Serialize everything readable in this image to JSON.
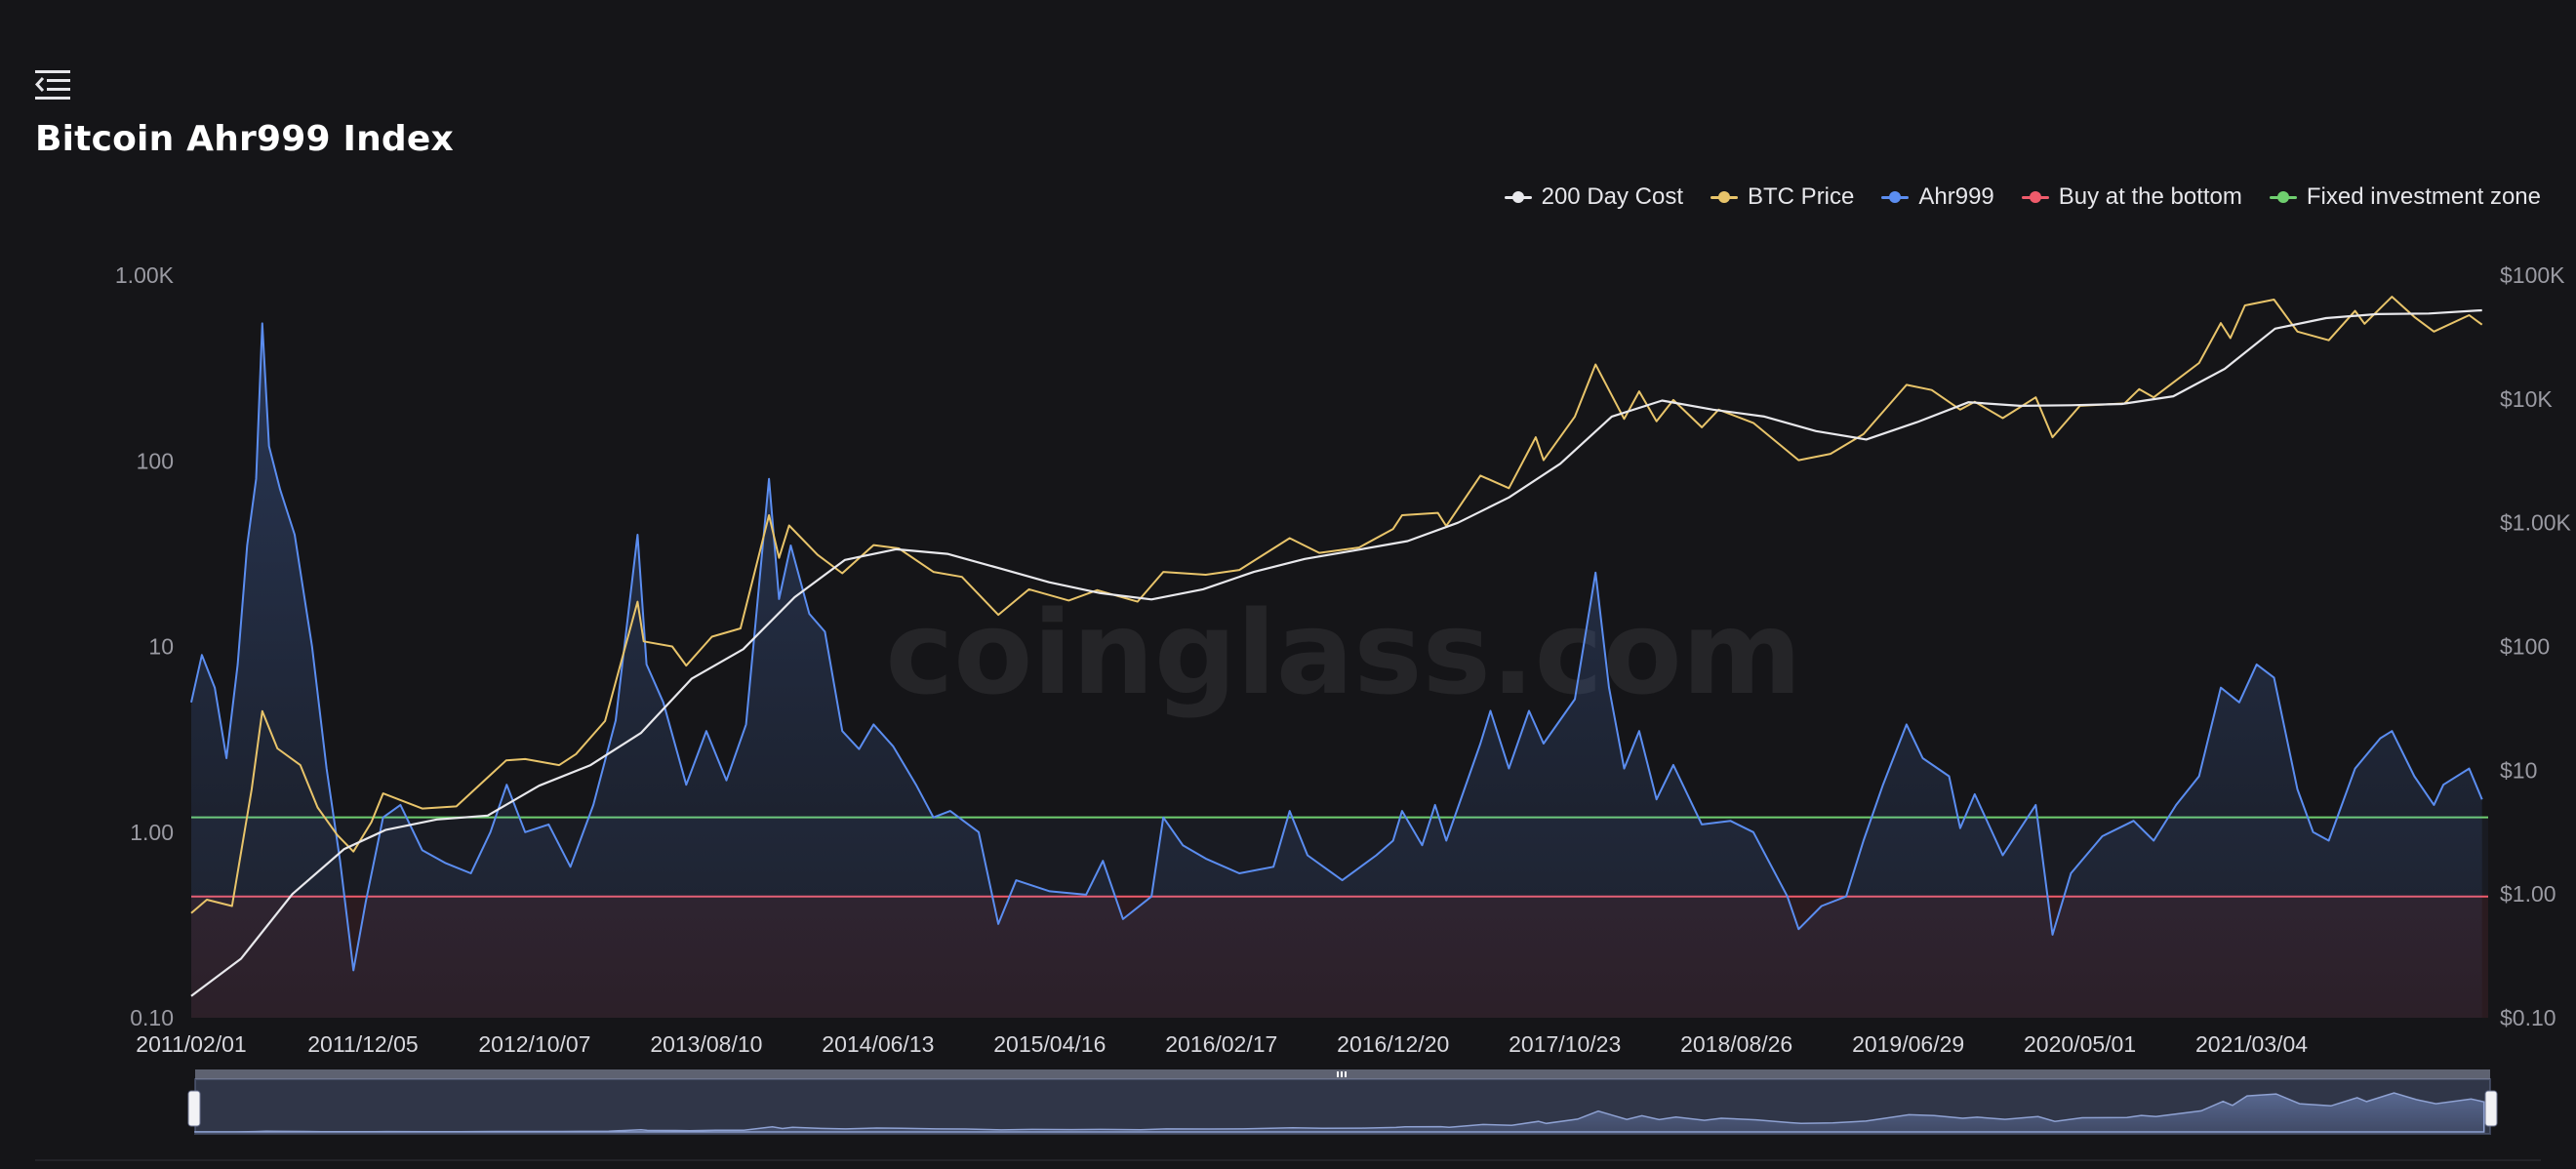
{
  "page": {
    "title": "Bitcoin Ahr999 Index",
    "watermark": "coinglass.com",
    "menu_icon": "collapse-menu-icon"
  },
  "legend": [
    {
      "key": "cost200",
      "label": "200 Day Cost",
      "color": "#e8e8ec"
    },
    {
      "key": "price",
      "label": "BTC Price",
      "color": "#e8c46a"
    },
    {
      "key": "ahr",
      "label": "Ahr999",
      "color": "#5b8df0"
    },
    {
      "key": "bottom",
      "label": "Buy at the bottom",
      "color": "#ef5b6b"
    },
    {
      "key": "fixed",
      "label": "Fixed investment zone",
      "color": "#6fcf6f"
    }
  ],
  "chart_data": {
    "type": "line",
    "title": "Bitcoin Ahr999 Index",
    "x_range": [
      "2011-02-01",
      "2022-05-01"
    ],
    "x_tick_labels": [
      "2011/02/01",
      "2011/12/05",
      "2012/10/07",
      "2013/08/10",
      "2014/06/13",
      "2015/04/16",
      "2016/02/17",
      "2016/12/20",
      "2017/10/23",
      "2018/08/26",
      "2019/06/29",
      "2020/05/01",
      "2021/03/04"
    ],
    "y_left": {
      "scale": "log",
      "range": [
        0.1,
        1000
      ],
      "tick_labels": [
        "0.10",
        "1.00",
        "10",
        "100",
        "1.00K"
      ],
      "tick_values": [
        0.1,
        1,
        10,
        100,
        1000
      ]
    },
    "y_right": {
      "scale": "log",
      "range": [
        0.1,
        100000
      ],
      "tick_labels": [
        "$0.10",
        "$1.00",
        "$10",
        "$100",
        "$1.00K",
        "$10K",
        "$100K"
      ],
      "tick_values": [
        0.1,
        1,
        10,
        100,
        1000,
        10000,
        100000
      ]
    },
    "thresholds": [
      {
        "name": "Buy at the bottom",
        "value": 0.45,
        "color": "#ef5b6b"
      },
      {
        "name": "Fixed investment zone",
        "value": 1.2,
        "color": "#6fcf6f"
      }
    ],
    "series": [
      {
        "name": "Ahr999",
        "axis": "left",
        "color": "#5b8df0",
        "points": [
          [
            "2011-02-01",
            5
          ],
          [
            "2011-02-20",
            9
          ],
          [
            "2011-03-15",
            6
          ],
          [
            "2011-04-05",
            2.5
          ],
          [
            "2011-04-25",
            8
          ],
          [
            "2011-05-12",
            35
          ],
          [
            "2011-05-28",
            80
          ],
          [
            "2011-06-08",
            550
          ],
          [
            "2011-06-20",
            120
          ],
          [
            "2011-07-10",
            70
          ],
          [
            "2011-08-05",
            40
          ],
          [
            "2011-09-05",
            10
          ],
          [
            "2011-10-01",
            2.2
          ],
          [
            "2011-10-25",
            0.7
          ],
          [
            "2011-11-18",
            0.18
          ],
          [
            "2011-12-10",
            0.42
          ],
          [
            "2012-01-10",
            1.2
          ],
          [
            "2012-02-10",
            1.4
          ],
          [
            "2012-03-20",
            0.8
          ],
          [
            "2012-05-01",
            0.68
          ],
          [
            "2012-06-15",
            0.6
          ],
          [
            "2012-07-20",
            1.0
          ],
          [
            "2012-08-18",
            1.8
          ],
          [
            "2012-09-20",
            1.0
          ],
          [
            "2012-11-01",
            1.1
          ],
          [
            "2012-12-10",
            0.65
          ],
          [
            "2013-01-20",
            1.4
          ],
          [
            "2013-03-01",
            4
          ],
          [
            "2013-04-09",
            40
          ],
          [
            "2013-04-25",
            8
          ],
          [
            "2013-05-25",
            5
          ],
          [
            "2013-07-05",
            1.8
          ],
          [
            "2013-08-10",
            3.5
          ],
          [
            "2013-09-15",
            1.9
          ],
          [
            "2013-10-20",
            3.8
          ],
          [
            "2013-11-30",
            80
          ],
          [
            "2013-12-18",
            18
          ],
          [
            "2014-01-08",
            35
          ],
          [
            "2014-02-10",
            15
          ],
          [
            "2014-03-10",
            12
          ],
          [
            "2014-04-10",
            3.5
          ],
          [
            "2014-05-10",
            2.8
          ],
          [
            "2014-06-05",
            3.8
          ],
          [
            "2014-07-10",
            2.9
          ],
          [
            "2014-08-20",
            1.8
          ],
          [
            "2014-09-20",
            1.2
          ],
          [
            "2014-10-20",
            1.3
          ],
          [
            "2014-12-10",
            1.0
          ],
          [
            "2015-01-14",
            0.32
          ],
          [
            "2015-02-15",
            0.55
          ],
          [
            "2015-04-16",
            0.48
          ],
          [
            "2015-06-20",
            0.46
          ],
          [
            "2015-07-20",
            0.7
          ],
          [
            "2015-08-25",
            0.34
          ],
          [
            "2015-10-15",
            0.45
          ],
          [
            "2015-11-05",
            1.2
          ],
          [
            "2015-12-10",
            0.85
          ],
          [
            "2016-01-20",
            0.72
          ],
          [
            "2016-03-20",
            0.6
          ],
          [
            "2016-05-20",
            0.65
          ],
          [
            "2016-06-18",
            1.3
          ],
          [
            "2016-07-20",
            0.75
          ],
          [
            "2016-09-20",
            0.55
          ],
          [
            "2016-11-20",
            0.75
          ],
          [
            "2016-12-20",
            0.9
          ],
          [
            "2017-01-05",
            1.3
          ],
          [
            "2017-02-10",
            0.85
          ],
          [
            "2017-03-05",
            1.4
          ],
          [
            "2017-03-25",
            0.9
          ],
          [
            "2017-05-25",
            3.0
          ],
          [
            "2017-06-12",
            4.5
          ],
          [
            "2017-07-15",
            2.2
          ],
          [
            "2017-08-20",
            4.5
          ],
          [
            "2017-09-15",
            3.0
          ],
          [
            "2017-11-10",
            5.2
          ],
          [
            "2017-12-17",
            25
          ],
          [
            "2018-01-10",
            6
          ],
          [
            "2018-02-06",
            2.2
          ],
          [
            "2018-03-05",
            3.5
          ],
          [
            "2018-04-05",
            1.5
          ],
          [
            "2018-05-05",
            2.3
          ],
          [
            "2018-06-25",
            1.1
          ],
          [
            "2018-08-15",
            1.15
          ],
          [
            "2018-09-25",
            1.0
          ],
          [
            "2018-11-25",
            0.45
          ],
          [
            "2018-12-15",
            0.3
          ],
          [
            "2019-01-25",
            0.4
          ],
          [
            "2019-03-10",
            0.45
          ],
          [
            "2019-04-10",
            0.9
          ],
          [
            "2019-05-15",
            1.8
          ],
          [
            "2019-06-26",
            3.8
          ],
          [
            "2019-07-25",
            2.5
          ],
          [
            "2019-09-10",
            2.0
          ],
          [
            "2019-09-30",
            1.05
          ],
          [
            "2019-10-26",
            1.6
          ],
          [
            "2019-12-15",
            0.75
          ],
          [
            "2020-02-12",
            1.4
          ],
          [
            "2020-03-13",
            0.28
          ],
          [
            "2020-04-15",
            0.6
          ],
          [
            "2020-06-10",
            0.95
          ],
          [
            "2020-08-05",
            1.15
          ],
          [
            "2020-09-10",
            0.9
          ],
          [
            "2020-10-20",
            1.4
          ],
          [
            "2020-11-30",
            2.0
          ],
          [
            "2021-01-08",
            6
          ],
          [
            "2021-02-10",
            5
          ],
          [
            "2021-03-13",
            8
          ],
          [
            "2021-04-13",
            6.8
          ],
          [
            "2021-05-25",
            1.7
          ],
          [
            "2021-06-22",
            1.0
          ],
          [
            "2021-07-20",
            0.9
          ],
          [
            "2021-09-05",
            2.2
          ],
          [
            "2021-10-20",
            3.2
          ],
          [
            "2021-11-10",
            3.5
          ],
          [
            "2021-12-20",
            2.0
          ],
          [
            "2022-01-24",
            1.4
          ],
          [
            "2022-02-10",
            1.8
          ],
          [
            "2022-03-28",
            2.2
          ],
          [
            "2022-04-20",
            1.5
          ]
        ]
      },
      {
        "name": "BTC Price",
        "axis": "right",
        "color": "#e8c46a",
        "points": [
          [
            "2011-02-01",
            0.7
          ],
          [
            "2011-03-01",
            0.9
          ],
          [
            "2011-04-15",
            0.8
          ],
          [
            "2011-05-20",
            7
          ],
          [
            "2011-06-08",
            30
          ],
          [
            "2011-07-05",
            15
          ],
          [
            "2011-08-15",
            11
          ],
          [
            "2011-09-15",
            5
          ],
          [
            "2011-10-20",
            3
          ],
          [
            "2011-11-18",
            2.2
          ],
          [
            "2011-12-20",
            3.8
          ],
          [
            "2012-01-10",
            6.5
          ],
          [
            "2012-03-20",
            4.9
          ],
          [
            "2012-05-20",
            5.1
          ],
          [
            "2012-08-17",
            12
          ],
          [
            "2012-09-20",
            12.3
          ],
          [
            "2012-11-20",
            11
          ],
          [
            "2012-12-20",
            13.5
          ],
          [
            "2013-02-10",
            25
          ],
          [
            "2013-04-09",
            230
          ],
          [
            "2013-04-20",
            110
          ],
          [
            "2013-06-10",
            100
          ],
          [
            "2013-07-05",
            70
          ],
          [
            "2013-08-20",
            120
          ],
          [
            "2013-10-10",
            140
          ],
          [
            "2013-11-30",
            1150
          ],
          [
            "2013-12-18",
            520
          ],
          [
            "2014-01-05",
            950
          ],
          [
            "2014-02-25",
            550
          ],
          [
            "2014-04-10",
            390
          ],
          [
            "2014-06-05",
            660
          ],
          [
            "2014-07-20",
            620
          ],
          [
            "2014-09-20",
            400
          ],
          [
            "2014-11-10",
            365
          ],
          [
            "2015-01-14",
            180
          ],
          [
            "2015-03-10",
            290
          ],
          [
            "2015-05-20",
            235
          ],
          [
            "2015-07-10",
            285
          ],
          [
            "2015-09-20",
            230
          ],
          [
            "2015-11-05",
            400
          ],
          [
            "2016-01-20",
            380
          ],
          [
            "2016-03-20",
            415
          ],
          [
            "2016-06-18",
            750
          ],
          [
            "2016-08-10",
            570
          ],
          [
            "2016-10-20",
            630
          ],
          [
            "2016-12-20",
            890
          ],
          [
            "2017-01-05",
            1150
          ],
          [
            "2017-03-10",
            1200
          ],
          [
            "2017-03-25",
            940
          ],
          [
            "2017-05-25",
            2400
          ],
          [
            "2017-07-15",
            1900
          ],
          [
            "2017-09-01",
            4900
          ],
          [
            "2017-09-15",
            3200
          ],
          [
            "2017-11-10",
            7200
          ],
          [
            "2017-12-17",
            19000
          ],
          [
            "2018-02-06",
            6900
          ],
          [
            "2018-03-05",
            11500
          ],
          [
            "2018-04-05",
            6600
          ],
          [
            "2018-05-05",
            9800
          ],
          [
            "2018-06-25",
            5900
          ],
          [
            "2018-07-25",
            8200
          ],
          [
            "2018-09-25",
            6400
          ],
          [
            "2018-11-25",
            3800
          ],
          [
            "2018-12-15",
            3200
          ],
          [
            "2019-02-10",
            3600
          ],
          [
            "2019-04-10",
            5200
          ],
          [
            "2019-06-26",
            13000
          ],
          [
            "2019-08-10",
            11800
          ],
          [
            "2019-09-30",
            8200
          ],
          [
            "2019-10-26",
            9500
          ],
          [
            "2019-12-15",
            7000
          ],
          [
            "2020-02-12",
            10300
          ],
          [
            "2020-03-13",
            4900
          ],
          [
            "2020-05-01",
            8800
          ],
          [
            "2020-07-20",
            9200
          ],
          [
            "2020-08-15",
            12000
          ],
          [
            "2020-09-10",
            10300
          ],
          [
            "2020-11-30",
            19500
          ],
          [
            "2021-01-08",
            41000
          ],
          [
            "2021-01-25",
            31000
          ],
          [
            "2021-02-20",
            57000
          ],
          [
            "2021-04-13",
            63500
          ],
          [
            "2021-05-25",
            35000
          ],
          [
            "2021-07-20",
            29800
          ],
          [
            "2021-09-05",
            51500
          ],
          [
            "2021-09-22",
            40500
          ],
          [
            "2021-11-10",
            67000
          ],
          [
            "2021-12-20",
            46000
          ],
          [
            "2022-01-24",
            35000
          ],
          [
            "2022-03-28",
            47500
          ],
          [
            "2022-04-20",
            39800
          ]
        ]
      },
      {
        "name": "200 Day Cost",
        "axis": "right",
        "color": "#e8e8ec",
        "points": [
          [
            "2011-02-01",
            0.15
          ],
          [
            "2011-05-01",
            0.3
          ],
          [
            "2011-08-01",
            1.0
          ],
          [
            "2011-11-01",
            2.3
          ],
          [
            "2012-01-15",
            3.3
          ],
          [
            "2012-04-15",
            4.0
          ],
          [
            "2012-07-15",
            4.3
          ],
          [
            "2012-10-15",
            7.5
          ],
          [
            "2013-01-15",
            11
          ],
          [
            "2013-04-15",
            20
          ],
          [
            "2013-07-15",
            55
          ],
          [
            "2013-10-15",
            95
          ],
          [
            "2014-01-15",
            250
          ],
          [
            "2014-04-15",
            500
          ],
          [
            "2014-07-15",
            610
          ],
          [
            "2014-10-15",
            560
          ],
          [
            "2015-01-15",
            430
          ],
          [
            "2015-04-15",
            330
          ],
          [
            "2015-07-15",
            270
          ],
          [
            "2015-10-15",
            240
          ],
          [
            "2016-01-15",
            290
          ],
          [
            "2016-04-15",
            400
          ],
          [
            "2016-07-15",
            510
          ],
          [
            "2016-10-15",
            600
          ],
          [
            "2017-01-15",
            710
          ],
          [
            "2017-04-15",
            1000
          ],
          [
            "2017-07-15",
            1600
          ],
          [
            "2017-10-15",
            3000
          ],
          [
            "2018-01-15",
            7200
          ],
          [
            "2018-04-15",
            9700
          ],
          [
            "2018-07-15",
            8200
          ],
          [
            "2018-10-15",
            7200
          ],
          [
            "2019-01-15",
            5500
          ],
          [
            "2019-04-15",
            4700
          ],
          [
            "2019-07-15",
            6500
          ],
          [
            "2019-10-15",
            9400
          ],
          [
            "2020-01-15",
            8800
          ],
          [
            "2020-04-15",
            8900
          ],
          [
            "2020-07-15",
            9100
          ],
          [
            "2020-10-15",
            10500
          ],
          [
            "2021-01-15",
            17500
          ],
          [
            "2021-04-15",
            37000
          ],
          [
            "2021-07-15",
            45000
          ],
          [
            "2021-10-15",
            48500
          ],
          [
            "2022-01-15",
            49000
          ],
          [
            "2022-04-20",
            52000
          ]
        ]
      }
    ]
  }
}
